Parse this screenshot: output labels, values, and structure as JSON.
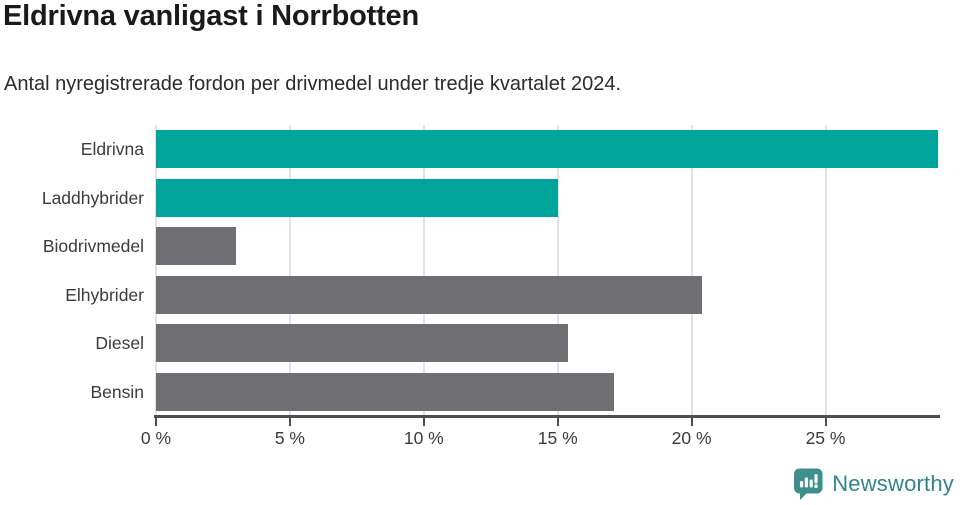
{
  "title": "Eldrivna vanligast i Norrbotten",
  "subtitle": "Antal nyregistrerade fordon per drivmedel under tredje kvartalet 2024.",
  "chart_data": {
    "type": "bar",
    "orientation": "horizontal",
    "title": "Eldrivna vanligast i Norrbotten",
    "subtitle": "Antal nyregistrerade fordon per drivmedel under tredje kvartalet 2024.",
    "categories": [
      "Eldrivna",
      "Laddhybrider",
      "Biodrivmedel",
      "Elhybrider",
      "Diesel",
      "Bensin"
    ],
    "values": [
      29.2,
      15.0,
      3.0,
      20.4,
      15.4,
      17.1
    ],
    "unit": "%",
    "bar_colors": [
      "#00a49b",
      "#00a49b",
      "#6f6e73",
      "#6f6e73",
      "#6f6e73",
      "#6f6e73"
    ],
    "highlight_color": "#00a49b",
    "default_color": "#6f6e73",
    "xlabel": "",
    "ylabel": "",
    "xlim": [
      0,
      29.2
    ],
    "x_tick_values": [
      0,
      5,
      10,
      15,
      20,
      25
    ],
    "x_tick_labels": [
      "0 %",
      "5 %",
      "10 %",
      "15 %",
      "20 %",
      "25 %"
    ],
    "grid": "vertical",
    "gridline_color": "#e3e3e3",
    "axis_color": "#4d4d4d",
    "legend": "none"
  },
  "footer": {
    "brand": "Newsworthy",
    "brand_color": "#2f858c",
    "logo_icon": "newsworthy-speech-bubble-bar-chart-icon",
    "logo_icon_color": "#3e8e8b"
  },
  "colors": {
    "background": "#ffffff",
    "title_text": "#1a1a1a",
    "subtitle_text": "#2b2b2b",
    "label_text": "#3b3b3b"
  }
}
